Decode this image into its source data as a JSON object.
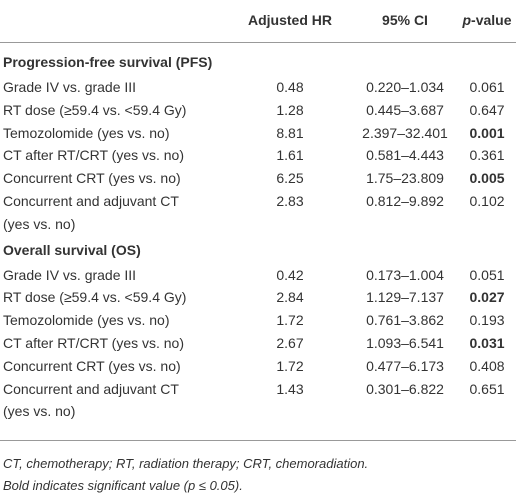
{
  "table": {
    "header": [
      "",
      "Adjusted HR",
      "95% CI",
      "p-value"
    ],
    "sections": [
      {
        "title": "Progression-free survival (PFS)",
        "rows": [
          {
            "label": [
              "Grade IV vs. grade III"
            ],
            "hr": "0.48",
            "ci": "0.220–1.034",
            "p": "0.061",
            "bold": false
          },
          {
            "label": [
              "RT dose (≥59.4 vs. <59.4 Gy)"
            ],
            "hr": "1.28",
            "ci": "0.445–3.687",
            "p": "0.647",
            "bold": false
          },
          {
            "label": [
              "Temozolomide (yes vs. no)"
            ],
            "hr": "8.81",
            "ci": "2.397–32.401",
            "p": "0.001",
            "bold": true
          },
          {
            "label": [
              "CT after RT/CRT (yes vs. no)"
            ],
            "hr": "1.61",
            "ci": "0.581–4.443",
            "p": "0.361",
            "bold": false
          },
          {
            "label": [
              "Concurrent CRT (yes vs. no)"
            ],
            "hr": "6.25",
            "ci": "1.75–23.809",
            "p": "0.005",
            "bold": true
          },
          {
            "label": [
              "Concurrent and adjuvant CT",
              "(yes vs. no)"
            ],
            "hr": "2.83",
            "ci": "0.812–9.892",
            "p": "0.102",
            "bold": false
          }
        ]
      },
      {
        "title": "Overall survival (OS)",
        "rows": [
          {
            "label": [
              "Grade IV vs. grade III"
            ],
            "hr": "0.42",
            "ci": "0.173–1.004",
            "p": "0.051",
            "bold": false
          },
          {
            "label": [
              "RT dose (≥59.4 vs. <59.4 Gy)"
            ],
            "hr": "2.84",
            "ci": "1.129–7.137",
            "p": "0.027",
            "bold": true
          },
          {
            "label": [
              "Temozolomide (yes vs. no)"
            ],
            "hr": "1.72",
            "ci": "0.761–3.862",
            "p": "0.193",
            "bold": false
          },
          {
            "label": [
              "CT after RT/CRT (yes vs. no)"
            ],
            "hr": "2.67",
            "ci": "1.093–6.541",
            "p": "0.031",
            "bold": true
          },
          {
            "label": [
              "Concurrent CRT (yes vs. no)"
            ],
            "hr": "1.72",
            "ci": "0.477–6.173",
            "p": "0.408",
            "bold": false
          },
          {
            "label": [
              "Concurrent and adjuvant CT",
              "(yes vs. no)"
            ],
            "hr": "1.43",
            "ci": "0.301–6.822",
            "p": "0.651",
            "bold": false
          }
        ]
      }
    ],
    "footnotes": [
      "CT, chemotherapy; RT, radiation therapy; CRT, chemoradiation.",
      "Bold indicates significant value (p ≤ 0.05)."
    ]
  }
}
